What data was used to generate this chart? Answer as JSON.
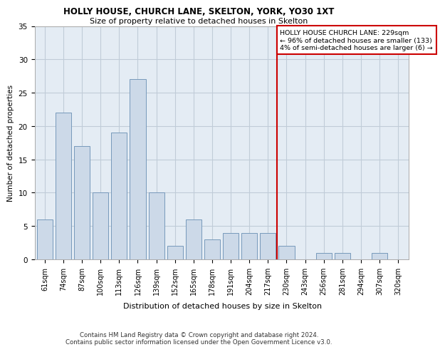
{
  "title1": "HOLLY HOUSE, CHURCH LANE, SKELTON, YORK, YO30 1XT",
  "title2": "Size of property relative to detached houses in Skelton",
  "xlabel": "Distribution of detached houses by size in Skelton",
  "ylabel": "Number of detached properties",
  "categories": [
    "61sqm",
    "74sqm",
    "87sqm",
    "100sqm",
    "113sqm",
    "126sqm",
    "139sqm",
    "152sqm",
    "165sqm",
    "178sqm",
    "191sqm",
    "204sqm",
    "217sqm",
    "230sqm",
    "243sqm",
    "256sqm",
    "281sqm",
    "294sqm",
    "307sqm",
    "320sqm"
  ],
  "values": [
    6,
    22,
    17,
    10,
    19,
    27,
    10,
    2,
    6,
    3,
    4,
    4,
    4,
    2,
    0,
    1,
    1,
    0,
    1,
    0
  ],
  "bar_color": "#ccd9e8",
  "bar_edge_color": "#7799bb",
  "grid_color": "#c0ccd8",
  "background_color": "#e4ecf4",
  "annotation_line_color": "#cc0000",
  "annotation_box_text": "HOLLY HOUSE CHURCH LANE: 229sqm\n← 96% of detached houses are smaller (133)\n4% of semi-detached houses are larger (6) →",
  "footer": "Contains HM Land Registry data © Crown copyright and database right 2024.\nContains public sector information licensed under the Open Government Licence v3.0.",
  "ylim": [
    0,
    35
  ],
  "yticks": [
    0,
    5,
    10,
    15,
    20,
    25,
    30,
    35
  ]
}
